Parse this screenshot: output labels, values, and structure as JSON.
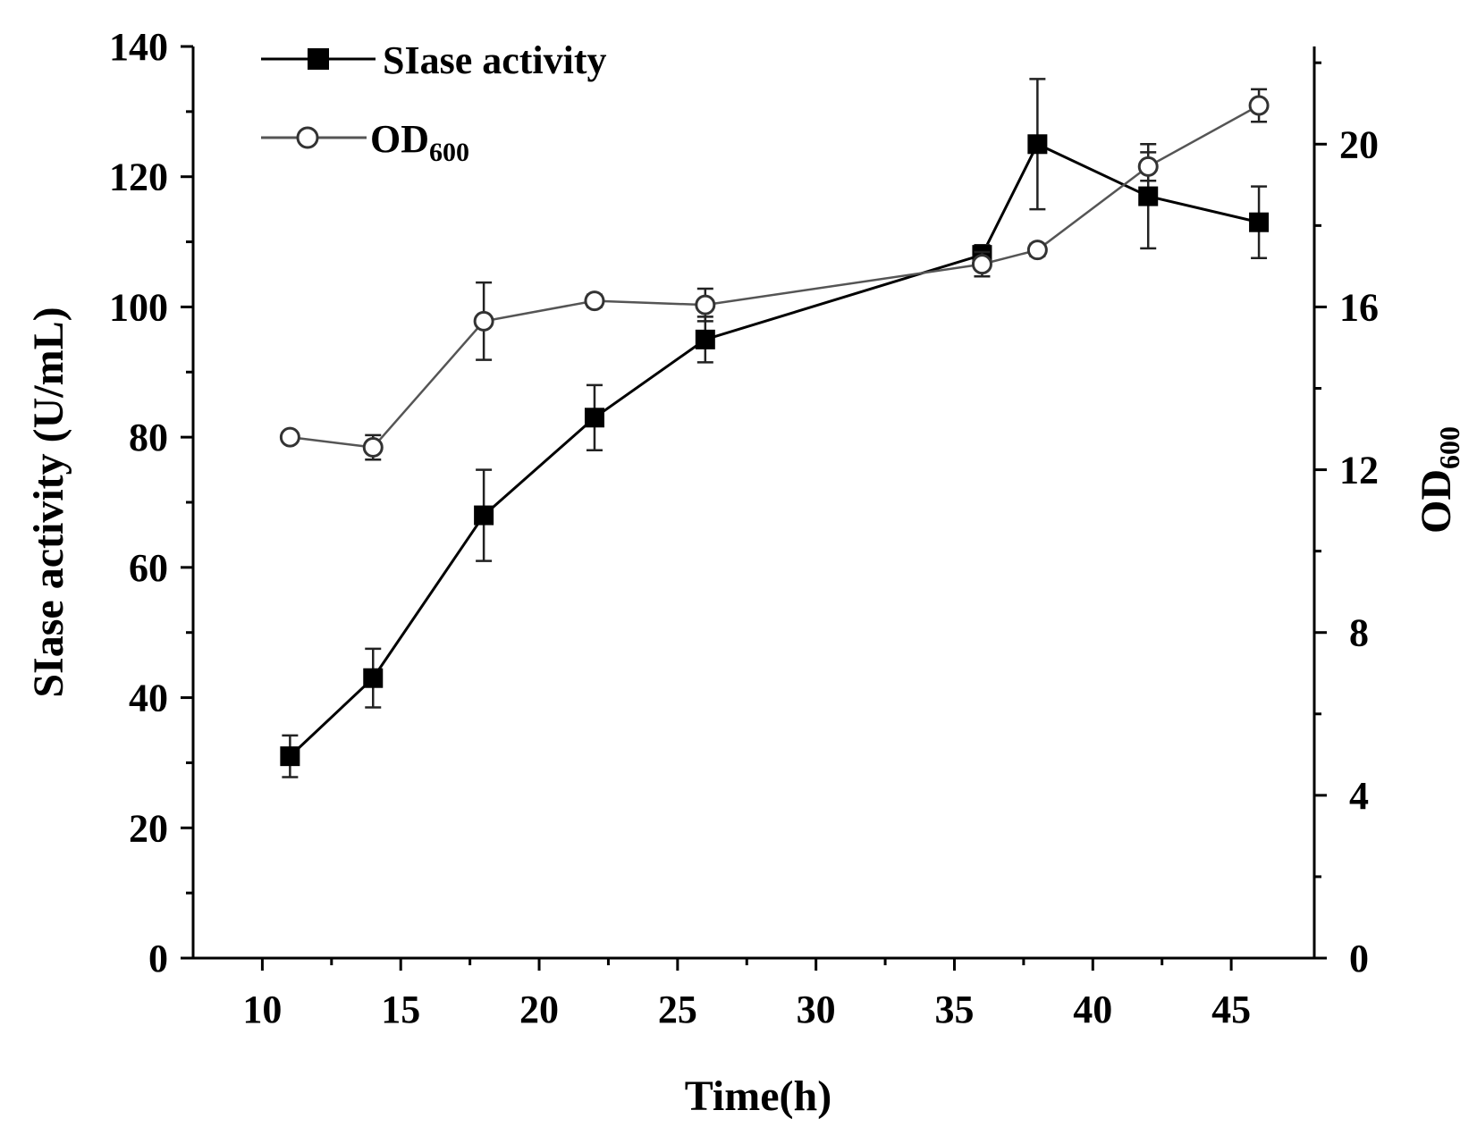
{
  "chart_data": {
    "type": "line",
    "title": "",
    "xlabel": "Time(h)",
    "ylabel": "SIase activity (U/mL)",
    "y2label_main": "OD",
    "y2label_sub": "600",
    "xlim": [
      7.5,
      48
    ],
    "ylim": [
      0,
      140
    ],
    "y2lim": [
      0,
      22.4
    ],
    "x_ticks": [
      10,
      15,
      20,
      25,
      30,
      35,
      40,
      45
    ],
    "y_ticks": [
      0,
      20,
      40,
      60,
      80,
      100,
      120,
      140
    ],
    "y2_ticks": [
      0,
      4,
      8,
      12,
      16,
      20
    ],
    "series": [
      {
        "name": "SIase activity",
        "legend_label": "SIase activity",
        "axis": "left",
        "marker": "filled-square",
        "color": "#000000",
        "x": [
          11,
          14,
          18,
          22,
          26,
          36,
          38,
          42,
          46
        ],
        "values": [
          31,
          43,
          68,
          83,
          95,
          108,
          125,
          117,
          113
        ],
        "error": [
          3.2,
          4.5,
          7,
          5,
          3.5,
          1.5,
          10,
          8,
          5.5
        ]
      },
      {
        "name": "OD600",
        "legend_main": "OD",
        "legend_sub": "600",
        "axis": "right",
        "marker": "open-circle",
        "color": "#555555",
        "x": [
          11,
          14,
          18,
          22,
          26,
          36,
          38,
          42,
          46
        ],
        "values": [
          12.8,
          12.55,
          15.65,
          16.15,
          16.05,
          17.05,
          17.4,
          19.45,
          20.95
        ],
        "error": [
          0.1,
          0.3,
          0.95,
          0.15,
          0.4,
          0.3,
          0.15,
          0.35,
          0.4
        ]
      }
    ],
    "legend_position": "top-left"
  }
}
